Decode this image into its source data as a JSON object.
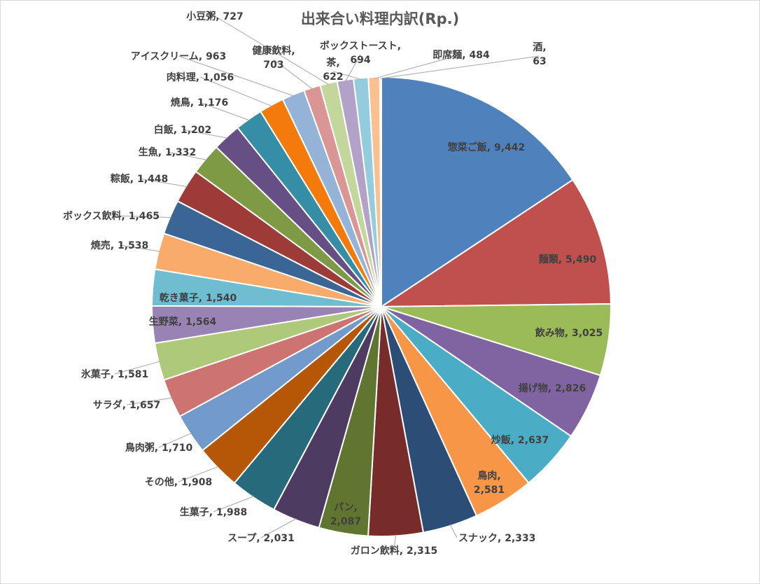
{
  "chart_data": {
    "type": "pie",
    "title": "出来合い料理内訳(Rp.)",
    "legend": "none",
    "slices": [
      {
        "label": "惣菜ご飯",
        "value": 9442,
        "value_text": "9,442",
        "color": "#4f81bd"
      },
      {
        "label": "麺類",
        "value": 5490,
        "value_text": "5,490",
        "color": "#c0504d"
      },
      {
        "label": "飲み物",
        "value": 3025,
        "value_text": "3,025",
        "color": "#9bbb59"
      },
      {
        "label": "揚げ物",
        "value": 2826,
        "value_text": "2,826",
        "color": "#8064a2"
      },
      {
        "label": "炒飯",
        "value": 2637,
        "value_text": "2,637",
        "color": "#4bacc6"
      },
      {
        "label": "鳥肉",
        "value": 2581,
        "value_text": "2,581",
        "color": "#f79646"
      },
      {
        "label": "スナック",
        "value": 2333,
        "value_text": "2,333",
        "color": "#2c4d75"
      },
      {
        "label": "ガロン飲料",
        "value": 2315,
        "value_text": "2,315",
        "color": "#772c2a"
      },
      {
        "label": "パン",
        "value": 2087,
        "value_text": "2,087",
        "color": "#5f7530"
      },
      {
        "label": "スープ",
        "value": 2031,
        "value_text": "2,031",
        "color": "#4d3b62"
      },
      {
        "label": "生菓子",
        "value": 1988,
        "value_text": "1,988",
        "color": "#276a7c"
      },
      {
        "label": "その他",
        "value": 1908,
        "value_text": "1,908",
        "color": "#b65708"
      },
      {
        "label": "鳥肉粥",
        "value": 1710,
        "value_text": "1,710",
        "color": "#729aca"
      },
      {
        "label": "サラダ",
        "value": 1657,
        "value_text": "1,657",
        "color": "#cd7371"
      },
      {
        "label": "氷菓子",
        "value": 1581,
        "value_text": "1,581",
        "color": "#afc97a"
      },
      {
        "label": "生野菜",
        "value": 1564,
        "value_text": "1,564",
        "color": "#9983b5"
      },
      {
        "label": "乾き菓子",
        "value": 1540,
        "value_text": "1,540",
        "color": "#6fbdd1"
      },
      {
        "label": "焼売",
        "value": 1538,
        "value_text": "1,538",
        "color": "#f9ab6b"
      },
      {
        "label": "ボックス飲料",
        "value": 1465,
        "value_text": "1,465",
        "color": "#3a6595"
      },
      {
        "label": "粽飯",
        "value": 1448,
        "value_text": "1,448",
        "color": "#9c3b38"
      },
      {
        "label": "生魚",
        "value": 1332,
        "value_text": "1,332",
        "color": "#7e9a44"
      },
      {
        "label": "白飯",
        "value": 1202,
        "value_text": "1,202",
        "color": "#664f85"
      },
      {
        "label": "焼鳥",
        "value": 1176,
        "value_text": "1,176",
        "color": "#358ea6"
      },
      {
        "label": "肉料理",
        "value": 1056,
        "value_text": "1,056",
        "color": "#f47a0b"
      },
      {
        "label": "アイスクリーム",
        "value": 963,
        "value_text": "963",
        "color": "#95b3d7"
      },
      {
        "label": "健康飲料",
        "value": 703,
        "value_text": "703",
        "color": "#d99694"
      },
      {
        "label": "小豆粥",
        "value": 727,
        "value_text": "727",
        "color": "#c3d69b"
      },
      {
        "label": "ボックストースト",
        "value": 694,
        "value_text": "694",
        "color": "#b3a2c7"
      },
      {
        "label": "茶",
        "value": 622,
        "value_text": "622",
        "color": "#93cddd"
      },
      {
        "label": "即席麺",
        "value": 484,
        "value_text": "484",
        "color": "#fac090"
      },
      {
        "label": "酒",
        "value": 63,
        "value_text": "63",
        "color": "#4f81bd"
      }
    ]
  }
}
